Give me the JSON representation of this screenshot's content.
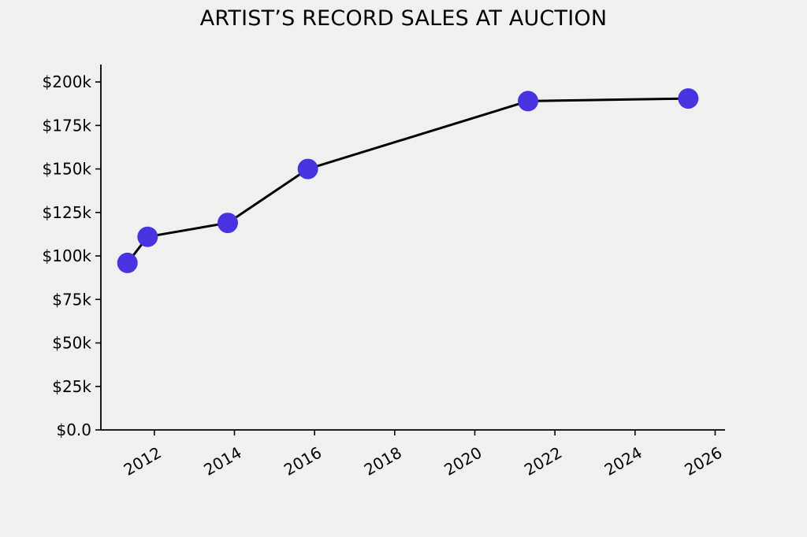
{
  "chart_data": {
    "type": "line",
    "title": "ARTIST’S RECORD SALES AT AUCTION",
    "xlabel": "",
    "ylabel": "",
    "x_tick_labels": [
      "2012",
      "2014",
      "2016",
      "2018",
      "2020",
      "2022",
      "2024",
      "2026"
    ],
    "y_tick_labels": [
      "$0.0",
      "$25k",
      "$50k",
      "$75k",
      "$100k",
      "$125k",
      "$150k",
      "$175k",
      "$200k"
    ],
    "xlim": [
      "2010-09-01",
      "2026-04-01"
    ],
    "ylim": [
      0,
      210000
    ],
    "grid": false,
    "legend": "none",
    "series": [
      {
        "x": [
          "2011-05-01",
          "2011-11-01",
          "2013-11-01",
          "2015-11-01",
          "2021-05-01",
          "2025-05-01"
        ],
        "y": [
          96000,
          111000,
          119000,
          150000,
          189000,
          190500
        ]
      }
    ],
    "colors": {
      "marker": "#4833e0",
      "line": "#000000",
      "axis": "#000000"
    }
  }
}
